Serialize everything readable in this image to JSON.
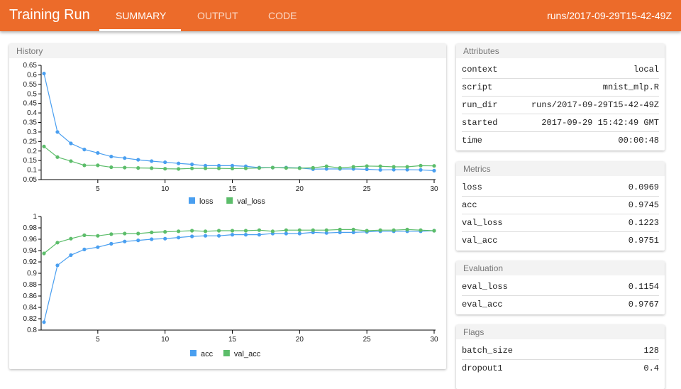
{
  "header": {
    "title": "Training Run",
    "tabs": [
      "SUMMARY",
      "OUTPUT",
      "CODE"
    ],
    "active_tab": "SUMMARY",
    "run_dir": "runs/2017-09-29T15-42-49Z",
    "color": "#ec6b2a"
  },
  "history": {
    "title": "History"
  },
  "attributes": {
    "title": "Attributes",
    "rows": [
      {
        "k": "context",
        "v": "local"
      },
      {
        "k": "script",
        "v": "mnist_mlp.R"
      },
      {
        "k": "run_dir",
        "v": "runs/2017-09-29T15-42-49Z"
      },
      {
        "k": "started",
        "v": "2017-09-29 15:42:49 GMT"
      },
      {
        "k": "time",
        "v": "00:00:48"
      }
    ]
  },
  "metrics": {
    "title": "Metrics",
    "rows": [
      {
        "k": "loss",
        "v": "0.0969"
      },
      {
        "k": "acc",
        "v": "0.9745"
      },
      {
        "k": "val_loss",
        "v": "0.1223"
      },
      {
        "k": "val_acc",
        "v": "0.9751"
      }
    ]
  },
  "evaluation": {
    "title": "Evaluation",
    "rows": [
      {
        "k": "eval_loss",
        "v": "0.1154"
      },
      {
        "k": "eval_acc",
        "v": "0.9767"
      }
    ]
  },
  "flags": {
    "title": "Flags",
    "rows": [
      {
        "k": "batch_size",
        "v": "128"
      },
      {
        "k": "dropout1",
        "v": "0.4"
      }
    ]
  },
  "chart_data": [
    {
      "type": "line",
      "x": [
        1,
        2,
        3,
        4,
        5,
        6,
        7,
        8,
        9,
        10,
        11,
        12,
        13,
        14,
        15,
        16,
        17,
        18,
        19,
        20,
        21,
        22,
        23,
        24,
        25,
        26,
        27,
        28,
        29,
        30
      ],
      "xticks": [
        "5",
        "10",
        "15",
        "20",
        "25",
        "30"
      ],
      "ylim": [
        0.05,
        0.65
      ],
      "yticks": [
        "0.05",
        "0.1",
        "0.15",
        "0.2",
        "0.25",
        "0.3",
        "0.35",
        "0.4",
        "0.45",
        "0.5",
        "0.55",
        "0.6",
        "0.65"
      ],
      "legend": "bottom",
      "series": [
        {
          "name": "loss",
          "color": "#4a9ff0",
          "values": [
            0.607,
            0.3,
            0.24,
            0.208,
            0.19,
            0.171,
            0.163,
            0.154,
            0.147,
            0.141,
            0.135,
            0.13,
            0.123,
            0.123,
            0.123,
            0.12,
            0.113,
            0.113,
            0.113,
            0.111,
            0.105,
            0.106,
            0.106,
            0.106,
            0.104,
            0.101,
            0.102,
            0.102,
            0.101,
            0.097
          ]
        },
        {
          "name": "val_loss",
          "color": "#5cbd6a",
          "values": [
            0.224,
            0.168,
            0.147,
            0.125,
            0.125,
            0.115,
            0.113,
            0.111,
            0.11,
            0.107,
            0.106,
            0.109,
            0.109,
            0.109,
            0.108,
            0.109,
            0.111,
            0.113,
            0.111,
            0.11,
            0.112,
            0.12,
            0.111,
            0.117,
            0.121,
            0.12,
            0.117,
            0.117,
            0.123,
            0.122
          ]
        }
      ]
    },
    {
      "type": "line",
      "x": [
        1,
        2,
        3,
        4,
        5,
        6,
        7,
        8,
        9,
        10,
        11,
        12,
        13,
        14,
        15,
        16,
        17,
        18,
        19,
        20,
        21,
        22,
        23,
        24,
        25,
        26,
        27,
        28,
        29,
        30
      ],
      "xticks": [
        "5",
        "10",
        "15",
        "20",
        "25",
        "30"
      ],
      "ylim": [
        0.8,
        1
      ],
      "yticks": [
        "0.8",
        "0.82",
        "0.84",
        "0.86",
        "0.88",
        "0.9",
        "0.92",
        "0.94",
        "0.96",
        "0.98",
        "1"
      ],
      "legend": "bottom",
      "series": [
        {
          "name": "acc",
          "color": "#4a9ff0",
          "values": [
            0.814,
            0.914,
            0.932,
            0.942,
            0.946,
            0.952,
            0.956,
            0.958,
            0.96,
            0.961,
            0.963,
            0.965,
            0.966,
            0.966,
            0.968,
            0.968,
            0.968,
            0.97,
            0.97,
            0.97,
            0.972,
            0.971,
            0.972,
            0.972,
            0.973,
            0.974,
            0.974,
            0.974,
            0.974,
            0.975
          ]
        },
        {
          "name": "val_acc",
          "color": "#5cbd6a",
          "values": [
            0.935,
            0.954,
            0.961,
            0.967,
            0.966,
            0.969,
            0.97,
            0.97,
            0.972,
            0.973,
            0.974,
            0.975,
            0.974,
            0.975,
            0.975,
            0.975,
            0.976,
            0.974,
            0.976,
            0.976,
            0.976,
            0.976,
            0.977,
            0.977,
            0.975,
            0.976,
            0.976,
            0.977,
            0.976,
            0.975
          ]
        }
      ]
    }
  ]
}
